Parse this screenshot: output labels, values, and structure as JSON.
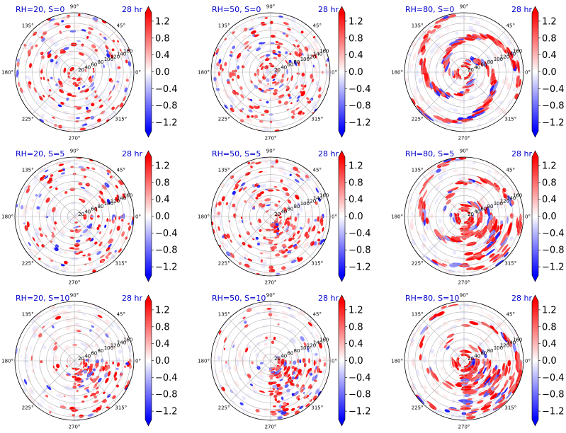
{
  "chart_data": {
    "type": "heatmap",
    "projection": "polar",
    "description_time": "28 hr",
    "radial_ticks": [
      "20",
      "40",
      "60",
      "80",
      "100",
      "120",
      "140",
      "160"
    ],
    "radial_range": [
      0,
      170
    ],
    "angle_ticks": [
      "0°",
      "45°",
      "90°",
      "135°",
      "180°",
      "225°",
      "270°",
      "315°"
    ],
    "colorbar": {
      "colormap": "bwr",
      "range": [
        -1.4,
        1.4
      ],
      "tick_values": [
        1.2,
        0.8,
        0.4,
        0.0,
        -0.4,
        -0.8,
        -1.2
      ],
      "tick_labels": [
        "1.2",
        "0.8",
        "0.4",
        "0.0",
        "−0.4",
        "−0.8",
        "−1.2"
      ],
      "extend": "both"
    },
    "panels": [
      {
        "title": "RH=20, S=0",
        "time": "28 hr",
        "rh": 20,
        "shear": 0
      },
      {
        "title": "RH=50, S=0",
        "time": "28 hr",
        "rh": 50,
        "shear": 0
      },
      {
        "title": "RH=80, S=0",
        "time": "28 hr",
        "rh": 80,
        "shear": 0
      },
      {
        "title": "RH=20, S=5",
        "time": "28 hr",
        "rh": 20,
        "shear": 5
      },
      {
        "title": "RH=50, S=5",
        "time": "28 hr",
        "rh": 50,
        "shear": 5
      },
      {
        "title": "RH=80, S=5",
        "time": "28 hr",
        "rh": 80,
        "shear": 5
      },
      {
        "title": "RH=20, S=10",
        "time": "28 hr",
        "rh": 20,
        "shear": 10
      },
      {
        "title": "RH=50, S=10",
        "time": "28 hr",
        "rh": 50,
        "shear": 10
      },
      {
        "title": "RH=80, S=10",
        "time": "28 hr",
        "rh": 80,
        "shear": 10
      }
    ]
  }
}
